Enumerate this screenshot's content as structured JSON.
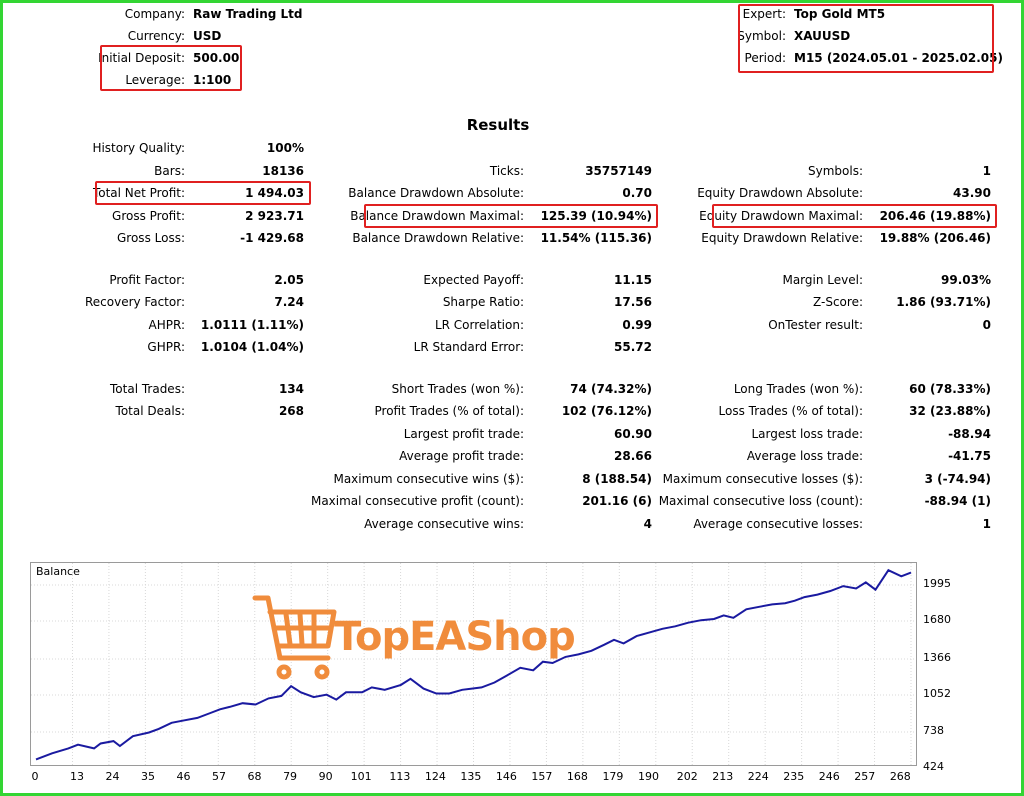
{
  "header_left": [
    {
      "label": "Company:",
      "value": "Raw Trading Ltd"
    },
    {
      "label": "Currency:",
      "value": "USD"
    },
    {
      "label": "Initial Deposit:",
      "value": "500.00"
    },
    {
      "label": "Leverage:",
      "value": "1:100"
    }
  ],
  "header_right": [
    {
      "label": "Expert:",
      "value": "Top Gold MT5"
    },
    {
      "label": "Symbol:",
      "value": "XAUUSD"
    },
    {
      "label": "Period:",
      "value": "M15 (2024.05.01 - 2025.02.05)"
    }
  ],
  "results_title": "Results",
  "col1": [
    {
      "label": "History Quality:",
      "value": "100%"
    },
    {
      "label": "Bars:",
      "value": "18136"
    },
    {
      "label": "Total Net Profit:",
      "value": "1 494.03"
    },
    {
      "label": "Gross Profit:",
      "value": "2 923.71"
    },
    {
      "label": "Gross Loss:",
      "value": "-1 429.68"
    },
    {
      "label": "Profit Factor:",
      "value": "2.05"
    },
    {
      "label": "Recovery Factor:",
      "value": "7.24"
    },
    {
      "label": "AHPR:",
      "value": "1.0111 (1.11%)"
    },
    {
      "label": "GHPR:",
      "value": "1.0104 (1.04%)"
    },
    {
      "label": "Total Trades:",
      "value": "134"
    },
    {
      "label": "Total Deals:",
      "value": "268"
    }
  ],
  "col2": [
    {
      "label": "Ticks:",
      "value": "35757149"
    },
    {
      "label": "Balance Drawdown Absolute:",
      "value": "0.70"
    },
    {
      "label": "Balance Drawdown Maximal:",
      "value": "125.39 (10.94%)"
    },
    {
      "label": "Balance Drawdown Relative:",
      "value": "11.54% (115.36)"
    },
    {
      "label": "Expected Payoff:",
      "value": "11.15"
    },
    {
      "label": "Sharpe Ratio:",
      "value": "17.56"
    },
    {
      "label": "LR Correlation:",
      "value": "0.99"
    },
    {
      "label": "LR Standard Error:",
      "value": "55.72"
    },
    {
      "label": "Short Trades (won %):",
      "value": "74 (74.32%)"
    },
    {
      "label": "Profit Trades (% of total):",
      "value": "102 (76.12%)"
    },
    {
      "label": "Largest profit trade:",
      "value": "60.90"
    },
    {
      "label": "Average profit trade:",
      "value": "28.66"
    },
    {
      "label": "Maximum consecutive wins ($):",
      "value": "8 (188.54)"
    },
    {
      "label": "Maximal consecutive profit (count):",
      "value": "201.16 (6)"
    },
    {
      "label": "Average consecutive wins:",
      "value": "4"
    }
  ],
  "col3": [
    {
      "label": "Symbols:",
      "value": "1"
    },
    {
      "label": "Equity Drawdown Absolute:",
      "value": "43.90"
    },
    {
      "label": "Equity Drawdown Maximal:",
      "value": "206.46 (19.88%)"
    },
    {
      "label": "Equity Drawdown Relative:",
      "value": "19.88% (206.46)"
    },
    {
      "label": "Margin Level:",
      "value": "99.03%"
    },
    {
      "label": "Z-Score:",
      "value": "1.86 (93.71%)"
    },
    {
      "label": "OnTester result:",
      "value": "0"
    },
    {
      "label": "Long Trades (won %):",
      "value": "60 (78.33%)"
    },
    {
      "label": "Loss Trades (% of total):",
      "value": "32 (23.88%)"
    },
    {
      "label": "Largest loss trade:",
      "value": "-88.94"
    },
    {
      "label": "Average loss trade:",
      "value": "-41.75"
    },
    {
      "label": "Maximum consecutive losses ($):",
      "value": "3 (-74.94)"
    },
    {
      "label": "Maximal consecutive loss (count):",
      "value": "-88.94 (1)"
    },
    {
      "label": "Average consecutive losses:",
      "value": "1"
    }
  ],
  "watermark_text": "TopEAShop",
  "colors": {
    "highlight": "#e02020",
    "frame": "#33d533",
    "line": "#1a1aa0",
    "watermark": "#f08c3c"
  },
  "chart_data": {
    "type": "line",
    "title": "Balance",
    "xlabel": "",
    "ylabel": "",
    "x_ticks": [
      "0",
      "13",
      "24",
      "35",
      "46",
      "57",
      "68",
      "79",
      "90",
      "101",
      "113",
      "124",
      "135",
      "146",
      "157",
      "168",
      "179",
      "190",
      "202",
      "213",
      "224",
      "235",
      "246",
      "257",
      "268"
    ],
    "y_ticks": [
      "1995",
      "1680",
      "1366",
      "1052",
      "738",
      "424"
    ],
    "xlim": [
      0,
      271
    ],
    "ylim": [
      424,
      2079
    ],
    "series": [
      {
        "x": [
          0,
          5,
          10,
          13,
          18,
          20,
          24,
          26,
          30,
          35,
          38,
          42,
          46,
          50,
          54,
          57,
          60,
          64,
          68,
          72,
          76,
          79,
          82,
          86,
          90,
          93,
          96,
          101,
          104,
          108,
          113,
          116,
          120,
          124,
          128,
          132,
          135,
          138,
          142,
          146,
          150,
          154,
          157,
          160,
          164,
          168,
          172,
          176,
          179,
          182,
          186,
          190,
          194,
          198,
          202,
          206,
          210,
          213,
          216,
          220,
          224,
          228,
          232,
          235,
          238,
          242,
          246,
          250,
          254,
          257,
          260,
          264,
          268,
          271
        ],
        "values": [
          470,
          520,
          560,
          590,
          560,
          600,
          620,
          580,
          660,
          690,
          720,
          770,
          790,
          810,
          850,
          880,
          900,
          930,
          920,
          970,
          990,
          1070,
          1020,
          980,
          1000,
          960,
          1020,
          1020,
          1060,
          1040,
          1080,
          1130,
          1050,
          1010,
          1010,
          1040,
          1050,
          1060,
          1100,
          1160,
          1220,
          1200,
          1270,
          1260,
          1310,
          1330,
          1360,
          1410,
          1450,
          1420,
          1480,
          1510,
          1540,
          1560,
          1590,
          1610,
          1620,
          1650,
          1630,
          1700,
          1720,
          1740,
          1750,
          1770,
          1800,
          1820,
          1850,
          1890,
          1870,
          1920,
          1860,
          2020,
          1970,
          2000
        ]
      }
    ]
  }
}
